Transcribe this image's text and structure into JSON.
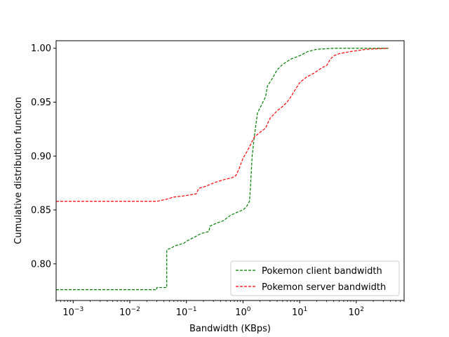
{
  "chart_data": {
    "type": "line",
    "title": "",
    "xlabel": "Bandwidth (KBps)",
    "ylabel": "Cumulative distribution function",
    "xscale": "log",
    "xlim": [
      0.0005,
      700
    ],
    "ylim": [
      0.766,
      1.007
    ],
    "grid": false,
    "legend_position": "lower-right",
    "x_ticks": [
      {
        "value": 0.001,
        "base": "10",
        "exp": "−3"
      },
      {
        "value": 0.01,
        "base": "10",
        "exp": "−2"
      },
      {
        "value": 0.1,
        "base": "10",
        "exp": "−1"
      },
      {
        "value": 1,
        "base": "10",
        "exp": "0"
      },
      {
        "value": 10,
        "base": "10",
        "exp": "1"
      },
      {
        "value": 100,
        "base": "10",
        "exp": "2"
      }
    ],
    "y_ticks": [
      {
        "value": 0.8,
        "label": "0.80"
      },
      {
        "value": 0.85,
        "label": "0.85"
      },
      {
        "value": 0.9,
        "label": "0.90"
      },
      {
        "value": 0.95,
        "label": "0.95"
      },
      {
        "value": 1.0,
        "label": "1.00"
      }
    ],
    "series": [
      {
        "name": "Pokemon client bandwidth",
        "color": "#008000",
        "style": "dashed",
        "points": [
          [
            0.0005,
            0.776
          ],
          [
            0.03,
            0.776
          ],
          [
            0.03,
            0.778
          ],
          [
            0.045,
            0.778
          ],
          [
            0.045,
            0.813
          ],
          [
            0.055,
            0.815
          ],
          [
            0.065,
            0.817
          ],
          [
            0.09,
            0.819
          ],
          [
            0.1,
            0.821
          ],
          [
            0.13,
            0.824
          ],
          [
            0.18,
            0.828
          ],
          [
            0.25,
            0.83
          ],
          [
            0.26,
            0.835
          ],
          [
            0.35,
            0.838
          ],
          [
            0.45,
            0.84
          ],
          [
            0.6,
            0.845
          ],
          [
            0.8,
            0.848
          ],
          [
            1.0,
            0.85
          ],
          [
            1.15,
            0.853
          ],
          [
            1.3,
            0.858
          ],
          [
            1.35,
            0.87
          ],
          [
            1.45,
            0.9
          ],
          [
            1.6,
            0.92
          ],
          [
            1.8,
            0.94
          ],
          [
            2.1,
            0.947
          ],
          [
            2.5,
            0.955
          ],
          [
            2.7,
            0.965
          ],
          [
            3.3,
            0.972
          ],
          [
            4.0,
            0.98
          ],
          [
            5.0,
            0.985
          ],
          [
            7.0,
            0.99
          ],
          [
            10.0,
            0.993
          ],
          [
            14.0,
            0.997
          ],
          [
            20.0,
            0.999
          ],
          [
            40.0,
            1.0
          ],
          [
            370.0,
            1.0
          ]
        ]
      },
      {
        "name": "Pokemon server bandwidth",
        "color": "#ff0000",
        "style": "dashed",
        "points": [
          [
            0.0005,
            0.858
          ],
          [
            0.03,
            0.858
          ],
          [
            0.045,
            0.86
          ],
          [
            0.06,
            0.862
          ],
          [
            0.09,
            0.863
          ],
          [
            0.15,
            0.865
          ],
          [
            0.165,
            0.87
          ],
          [
            0.22,
            0.872
          ],
          [
            0.3,
            0.875
          ],
          [
            0.45,
            0.878
          ],
          [
            0.65,
            0.88
          ],
          [
            0.75,
            0.882
          ],
          [
            0.85,
            0.888
          ],
          [
            1.0,
            0.898
          ],
          [
            1.2,
            0.905
          ],
          [
            1.4,
            0.912
          ],
          [
            1.6,
            0.918
          ],
          [
            2.0,
            0.922
          ],
          [
            2.5,
            0.926
          ],
          [
            3.0,
            0.935
          ],
          [
            4.0,
            0.942
          ],
          [
            5.0,
            0.946
          ],
          [
            6.0,
            0.95
          ],
          [
            7.0,
            0.955
          ],
          [
            8.0,
            0.96
          ],
          [
            10.0,
            0.968
          ],
          [
            13.0,
            0.973
          ],
          [
            18.0,
            0.977
          ],
          [
            25.0,
            0.982
          ],
          [
            30.0,
            0.984
          ],
          [
            35.0,
            0.99
          ],
          [
            40.0,
            0.993
          ],
          [
            50.0,
            0.995
          ],
          [
            80.0,
            0.997
          ],
          [
            150.0,
            0.999
          ],
          [
            370.0,
            1.0
          ]
        ]
      }
    ]
  }
}
